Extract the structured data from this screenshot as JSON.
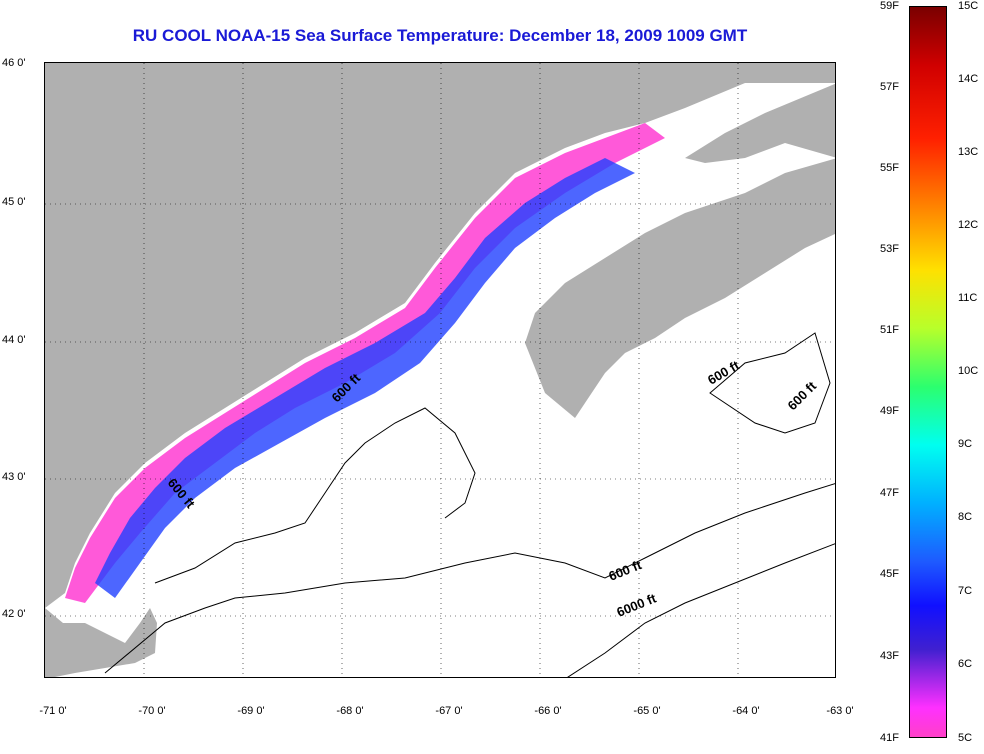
{
  "title": "RU COOL  NOAA-15  Sea Surface Temperature:  December 18, 2009 1009 GMT",
  "colors": {
    "title": "#1a1ad6",
    "land": "#b0b0b0",
    "ocean": "#ffffff",
    "warm_pink": "#ff3cd2",
    "cold_blue": "#2040ff"
  },
  "map": {
    "lon_range": [
      -71,
      -63
    ],
    "lat_range": [
      41.5,
      46
    ],
    "gridlines": "dotted",
    "lon_ticks": [
      "-71 0'",
      "-70 0'",
      "-69 0'",
      "-68 0'",
      "-67 0'",
      "-66 0'",
      "-65 0'",
      "-64 0'",
      "-63 0'"
    ],
    "lat_ticks": [
      "46 0'",
      "45 0'",
      "44 0'",
      "43 0'",
      "42 0'"
    ],
    "contour_labels": [
      {
        "text": "600 ft",
        "lon": -67.8,
        "lat": 43.6
      },
      {
        "text": "600 ft",
        "lon": -69.6,
        "lat": 42.8
      },
      {
        "text": "600 ft",
        "lon": -64.2,
        "lat": 43.8
      },
      {
        "text": "600 ft",
        "lon": -63.3,
        "lat": 43.6
      },
      {
        "text": "600 ft",
        "lon": -65.2,
        "lat": 42.3
      },
      {
        "text": "6000 ft",
        "lon": -65.1,
        "lat": 42.0
      }
    ]
  },
  "colorbar": {
    "fahrenheit": [
      "59F",
      "57F",
      "55F",
      "53F",
      "51F",
      "49F",
      "47F",
      "45F",
      "43F",
      "41F"
    ],
    "celsius": [
      "15C",
      "14C",
      "13C",
      "12C",
      "11C",
      "10C",
      "9C",
      "8C",
      "7C",
      "6C",
      "5C"
    ]
  }
}
